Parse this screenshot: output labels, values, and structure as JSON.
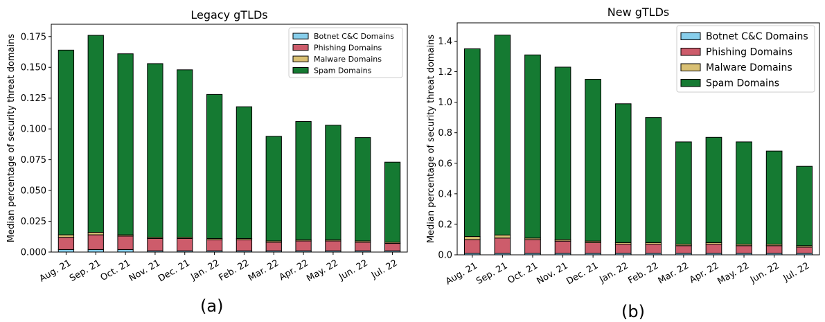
{
  "colors": {
    "botnet": "#87CEEB",
    "phishing": "#CD5C6B",
    "malware": "#D9C074",
    "spam": "#157A32",
    "edge": "#000000"
  },
  "captions": [
    "(a)",
    "(b)"
  ],
  "chart_data": [
    {
      "type": "bar",
      "stacked": true,
      "title": "Legacy gTLDs",
      "xlabel": "",
      "ylabel": "Median percentage of security threat domains",
      "categories": [
        "Aug. 21",
        "Sep. 21",
        "Oct. 21",
        "Nov. 21",
        "Dec. 21",
        "Jan. 22",
        "Feb. 22",
        "Mar. 22",
        "Apr. 22",
        "May. 22",
        "Jun. 22",
        "Jul. 22"
      ],
      "ylim": [
        0,
        0.185
      ],
      "yticks": [
        "0.000",
        "0.025",
        "0.050",
        "0.075",
        "0.100",
        "0.125",
        "0.150",
        "0.175"
      ],
      "ytick_values": [
        0,
        0.025,
        0.05,
        0.075,
        0.1,
        0.125,
        0.15,
        0.175
      ],
      "legend": "top-right",
      "grid": false,
      "series": [
        {
          "name": "Botnet C&C Domains",
          "key": "botnet",
          "values": [
            0.002,
            0.002,
            0.002,
            0.001,
            0.001,
            0.001,
            0.001,
            0.001,
            0.001,
            0.001,
            0.001,
            0.001
          ]
        },
        {
          "name": "Phishing Domains",
          "key": "phishing",
          "values": [
            0.01,
            0.012,
            0.011,
            0.01,
            0.01,
            0.009,
            0.009,
            0.007,
            0.008,
            0.008,
            0.007,
            0.006
          ]
        },
        {
          "name": "Malware Domains",
          "key": "malware",
          "values": [
            0.002,
            0.002,
            0.001,
            0.001,
            0.001,
            0.001,
            0.001,
            0.001,
            0.001,
            0.001,
            0.001,
            0.001
          ]
        },
        {
          "name": "Spam Domains",
          "key": "spam",
          "values": [
            0.15,
            0.16,
            0.147,
            0.141,
            0.136,
            0.117,
            0.107,
            0.085,
            0.096,
            0.093,
            0.084,
            0.065
          ]
        }
      ]
    },
    {
      "type": "bar",
      "stacked": true,
      "title": "New gTLDs",
      "xlabel": "",
      "ylabel": "Median percentage of security threat domains",
      "categories": [
        "Aug. 21",
        "Sep. 21",
        "Oct. 21",
        "Nov. 21",
        "Dec. 21",
        "Jan. 22",
        "Feb. 22",
        "Mar. 22",
        "Apr. 22",
        "May. 22",
        "Jun. 22",
        "Jul. 22"
      ],
      "ylim": [
        0,
        1.52
      ],
      "yticks": [
        "0.0",
        "0.2",
        "0.4",
        "0.6",
        "0.8",
        "1.0",
        "1.2",
        "1.4"
      ],
      "ytick_values": [
        0,
        0.2,
        0.4,
        0.6,
        0.8,
        1.0,
        1.2,
        1.4
      ],
      "legend": "top-right",
      "grid": false,
      "series": [
        {
          "name": "Botnet C&C Domains",
          "key": "botnet",
          "values": [
            0.01,
            0.01,
            0.01,
            0.01,
            0.01,
            0.01,
            0.01,
            0.01,
            0.01,
            0.01,
            0.01,
            0.01
          ]
        },
        {
          "name": "Phishing Domains",
          "key": "phishing",
          "values": [
            0.09,
            0.1,
            0.09,
            0.08,
            0.07,
            0.06,
            0.06,
            0.05,
            0.06,
            0.05,
            0.05,
            0.04
          ]
        },
        {
          "name": "Malware Domains",
          "key": "malware",
          "values": [
            0.02,
            0.02,
            0.01,
            0.01,
            0.01,
            0.01,
            0.01,
            0.01,
            0.01,
            0.01,
            0.01,
            0.01
          ]
        },
        {
          "name": "Spam Domains",
          "key": "spam",
          "values": [
            1.23,
            1.31,
            1.2,
            1.13,
            1.06,
            0.91,
            0.82,
            0.67,
            0.69,
            0.67,
            0.61,
            0.52
          ]
        }
      ]
    }
  ]
}
